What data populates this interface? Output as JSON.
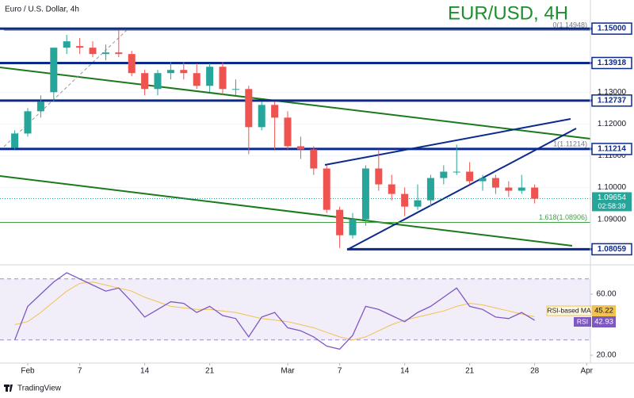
{
  "chart_data": [
    {
      "type": "candlestick",
      "title": "Euro / U.S. Dollar, 4h",
      "annotation": "EUR/USD, 4H",
      "x": [
        -1,
        0,
        1,
        2,
        3,
        4,
        5,
        6,
        7,
        8,
        9,
        10,
        11,
        12,
        13,
        14,
        15,
        16,
        17,
        18,
        19,
        20,
        21,
        22,
        23,
        24,
        25,
        26,
        27,
        28,
        29,
        30,
        31,
        32,
        33,
        34,
        35,
        36,
        37,
        38,
        39
      ],
      "open": [
        1.1125,
        1.117,
        1.124,
        1.13,
        1.144,
        1.1445,
        1.144,
        1.142,
        1.1425,
        1.142,
        1.136,
        1.131,
        1.136,
        1.137,
        1.136,
        1.132,
        1.138,
        1.131,
        1.131,
        1.119,
        1.126,
        1.122,
        1.113,
        1.112,
        1.106,
        1.093,
        1.085,
        1.09,
        1.106,
        1.101,
        1.098,
        1.094,
        1.096,
        1.103,
        1.105,
        1.105,
        1.102,
        1.103,
        1.1,
        1.099,
        1.1
      ],
      "high": [
        1.118,
        1.125,
        1.129,
        1.144,
        1.148,
        1.147,
        1.146,
        1.145,
        1.1495,
        1.143,
        1.137,
        1.137,
        1.1395,
        1.1395,
        1.139,
        1.139,
        1.1395,
        1.134,
        1.132,
        1.127,
        1.127,
        1.124,
        1.116,
        1.113,
        1.107,
        1.094,
        1.092,
        1.107,
        1.112,
        1.104,
        1.1,
        1.101,
        1.104,
        1.107,
        1.1135,
        1.108,
        1.104,
        1.104,
        1.102,
        1.104,
        1.101
      ],
      "low": [
        1.112,
        1.116,
        1.122,
        1.127,
        1.142,
        1.142,
        1.141,
        1.14,
        1.141,
        1.135,
        1.129,
        1.129,
        1.134,
        1.134,
        1.131,
        1.13,
        1.129,
        1.129,
        1.1105,
        1.118,
        1.112,
        1.112,
        1.109,
        1.104,
        1.092,
        1.081,
        1.084,
        1.088,
        1.099,
        1.096,
        1.091,
        1.093,
        1.094,
        1.101,
        1.104,
        1.101,
        1.099,
        1.098,
        1.097,
        1.098,
        1.095
      ],
      "close": [
        1.117,
        1.124,
        1.127,
        1.144,
        1.146,
        1.144,
        1.142,
        1.1425,
        1.142,
        1.136,
        1.131,
        1.136,
        1.137,
        1.136,
        1.132,
        1.138,
        1.131,
        1.131,
        1.119,
        1.126,
        1.122,
        1.113,
        1.112,
        1.106,
        1.093,
        1.085,
        1.09,
        1.106,
        1.101,
        1.098,
        1.094,
        1.096,
        1.103,
        1.105,
        1.105,
        1.102,
        1.103,
        1.1,
        1.099,
        1.1,
        1.0965
      ],
      "up_color": "#26a69a",
      "down_color": "#ef5350",
      "xlim": [
        -2.134,
        43.29
      ],
      "ylim": [
        1.0767,
        1.159
      ],
      "yticks": [
        {
          "value": 1.09,
          "label": "1.09000"
        },
        {
          "value": 1.1,
          "label": "1.10000"
        },
        {
          "value": 1.11,
          "label": "1.11000"
        },
        {
          "value": 1.12,
          "label": "1.12000"
        },
        {
          "value": 1.13,
          "label": "1.13000"
        }
      ],
      "grid": true,
      "levels": [
        {
          "value": 1.15,
          "label": "1.15000"
        },
        {
          "value": 1.13918,
          "label": "1.13918"
        },
        {
          "value": 1.12737,
          "label": "1.12737"
        },
        {
          "value": 1.11214,
          "label": "1.11214"
        },
        {
          "value": 1.08059,
          "label": "1.08059"
        }
      ],
      "level_color": "#0c2a8c",
      "fib": [
        {
          "value": 1.14948,
          "label": "0(1.14948)",
          "color": "#787b86"
        },
        {
          "value": 1.11214,
          "label": "1(1.11214)",
          "color": "#787b86"
        },
        {
          "value": 1.08906,
          "label": "1.618(1.08906)",
          "color": "#43a047"
        }
      ],
      "last_price": {
        "value": 1.09654,
        "label": "1.09654"
      },
      "countdown": "02:58:39",
      "last_color": "#26a69a"
    },
    {
      "type": "line",
      "x": [
        -1,
        0,
        1,
        2,
        3,
        4,
        5,
        6,
        7,
        8,
        9,
        10,
        11,
        12,
        13,
        14,
        15,
        16,
        17,
        18,
        19,
        20,
        21,
        22,
        23,
        24,
        25,
        26,
        27,
        28,
        29,
        30,
        31,
        32,
        33,
        34,
        35,
        36,
        37,
        38,
        39
      ],
      "series": [
        {
          "name": "RSI",
          "color": "#7e57c2",
          "values": [
            30,
            52,
            60,
            68,
            74,
            70,
            66,
            62,
            64,
            55,
            45,
            50,
            55,
            54,
            48,
            52,
            46,
            44,
            32,
            45,
            48,
            38,
            36,
            32,
            26,
            24,
            33,
            52,
            50,
            46,
            42,
            48,
            52,
            58,
            64,
            52,
            50,
            45,
            44,
            48,
            42.93
          ]
        },
        {
          "name": "RSI-based MA",
          "color": "#f2c14e",
          "values": [
            40,
            42,
            48,
            55,
            62,
            67,
            68,
            66,
            64,
            62,
            58,
            55,
            52,
            51,
            50,
            50,
            49,
            48,
            46,
            44,
            43,
            42,
            40,
            38,
            35,
            32,
            30,
            32,
            36,
            40,
            43,
            45,
            47,
            49,
            52,
            54,
            53,
            51,
            49,
            47,
            45.22
          ]
        }
      ],
      "xlim": [
        -2.134,
        43.29
      ],
      "xticks": [
        {
          "value": 0,
          "label": "Feb"
        },
        {
          "value": 4,
          "label": "7"
        },
        {
          "value": 9,
          "label": "14"
        },
        {
          "value": 14,
          "label": "21"
        },
        {
          "value": 20,
          "label": "Mar"
        },
        {
          "value": 24,
          "label": "7"
        },
        {
          "value": 29,
          "label": "14"
        },
        {
          "value": 34,
          "label": "21"
        },
        {
          "value": 39,
          "label": "28"
        },
        {
          "value": 43,
          "label": "Apr"
        }
      ],
      "ylim": [
        16.4,
        76.1
      ],
      "yticks": [
        {
          "value": 20,
          "label": "20.00"
        },
        {
          "value": 60,
          "label": "60.00"
        }
      ],
      "bands": [
        70,
        30
      ]
    },
    {
      "watermark": "TradingView"
    }
  ]
}
